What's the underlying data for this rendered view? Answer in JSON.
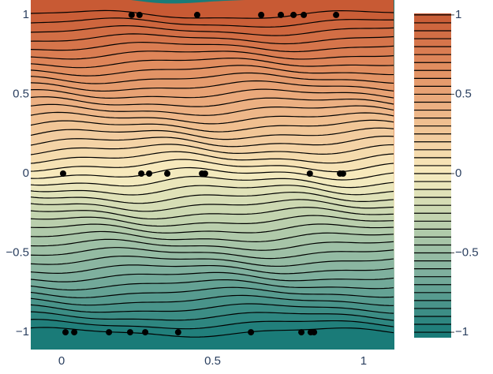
{
  "chart_data": {
    "type": "contour",
    "colorscale": [
      [
        -1,
        "#1a7b78"
      ],
      [
        -0.6,
        "#86b3a0"
      ],
      [
        -0.25,
        "#c8d7b0"
      ],
      [
        0,
        "#f8ecc0"
      ],
      [
        0.35,
        "#efbb8c"
      ],
      [
        0.7,
        "#e0895c"
      ],
      [
        1,
        "#c85a34"
      ]
    ],
    "contours": {
      "start": -1,
      "end": 1,
      "size": 0.05
    },
    "xlim": [
      -0.102,
      1.102
    ],
    "ylim": [
      -1.109,
      1.094
    ],
    "xticks": [
      0,
      0.5,
      1
    ],
    "yticks": [
      {
        "value": -1,
        "label": "−1"
      },
      {
        "value": -0.5,
        "label": "−0.5"
      },
      0,
      0.5,
      1
    ],
    "colorbar_ticks": [
      {
        "value": -1,
        "label": "−1"
      },
      {
        "value": -0.5,
        "label": "−0.5"
      },
      0,
      0.5,
      1
    ],
    "points": {
      "color": "#000000",
      "x": [
        0.232,
        0.258,
        0.449,
        0.661,
        0.726,
        0.768,
        0.802,
        0.909,
        0.005,
        0.264,
        0.29,
        0.35,
        0.465,
        0.475,
        0.822,
        0.922,
        0.932,
        0.013,
        0.042,
        0.157,
        0.227,
        0.277,
        0.386,
        0.627,
        0.794,
        0.825,
        0.836
      ],
      "y": [
        1,
        1,
        1,
        1,
        1,
        1,
        1,
        1,
        0,
        0,
        0,
        0,
        0,
        0,
        0,
        0,
        0,
        -1,
        -1,
        -1,
        -1,
        -1,
        -1,
        -1,
        -1,
        -1,
        -1
      ]
    }
  }
}
